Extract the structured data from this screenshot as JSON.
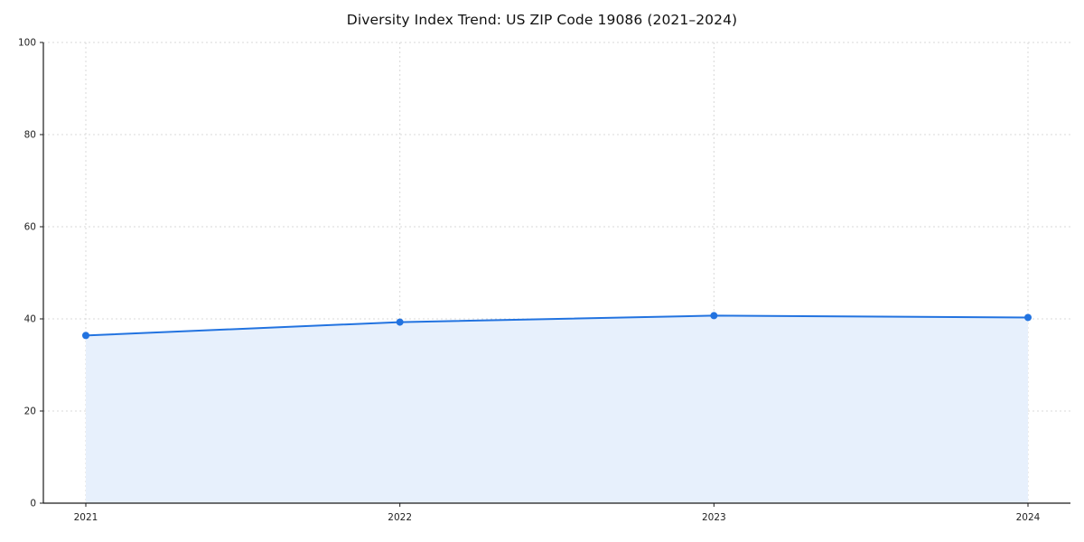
{
  "chart_data": {
    "type": "area",
    "title": "Diversity Index Trend: US ZIP Code 19086 (2021–2024)",
    "xlabel": "",
    "ylabel": "",
    "x": [
      2021,
      2022,
      2023,
      2024
    ],
    "series": [
      {
        "name": "Diversity Index",
        "values": [
          36.4,
          39.3,
          40.7,
          40.3
        ]
      }
    ],
    "ylim": [
      0,
      100
    ],
    "yticks": [
      0,
      20,
      40,
      60,
      80,
      100
    ],
    "grid": true,
    "legend": "none",
    "colors": {
      "line": "#2273e0",
      "marker": "#2273e0",
      "fill": "#e7f0fc",
      "gridline": "#d8d8d8",
      "axis": "#1a1a1a",
      "tick_text": "#222222"
    }
  }
}
